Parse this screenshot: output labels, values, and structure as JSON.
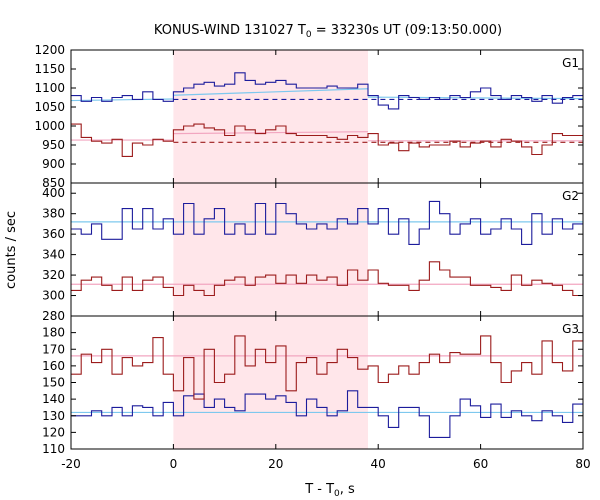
{
  "chart_data": {
    "type": "line",
    "title_main": "KONUS-WIND 131027 T",
    "title_sub": "0",
    "title_rest": " = 33230s UT (09:13:50.000)",
    "xlabel_main": "T - T",
    "xlabel_sub": "0",
    "xlabel_rest": ", s",
    "ylabel": "counts / sec",
    "xlim": [
      -20,
      80
    ],
    "x_ticks": [
      "-20",
      "0",
      "20",
      "40",
      "60",
      "80"
    ],
    "x_tick_values": [
      -20,
      0,
      20,
      40,
      60,
      80
    ],
    "highlight_interval": [
      0,
      38
    ],
    "colors": {
      "blue": "#1c1c9c",
      "red": "#9c1c1c",
      "light_blue": "#7ec8ee",
      "pink": "#f2a6c0",
      "highlight": "#ffe6ea"
    },
    "bin_edges": [
      -20,
      -18,
      -16,
      -14,
      -12,
      -10,
      -8,
      -6,
      -4,
      -2,
      0,
      2,
      4,
      6,
      8,
      10,
      12,
      14,
      16,
      18,
      20,
      22,
      24,
      26,
      28,
      30,
      32,
      34,
      36,
      38,
      40,
      42,
      44,
      46,
      48,
      50,
      52,
      54,
      56,
      58,
      60,
      62,
      64,
      66,
      68,
      70,
      72,
      74,
      76,
      78,
      80
    ],
    "panels": [
      {
        "label": "G1",
        "ylim": [
          850,
          1200
        ],
        "y_ticks": [
          "850",
          "900",
          "950",
          "1000",
          "1050",
          "1100",
          "1150",
          "1200"
        ],
        "y_tick_values": [
          850,
          900,
          950,
          1000,
          1050,
          1100,
          1150,
          1200
        ],
        "series": [
          {
            "color": "blue",
            "values": [
              1080,
              1065,
              1075,
              1065,
              1075,
              1080,
              1070,
              1090,
              1070,
              1065,
              1090,
              1100,
              1110,
              1115,
              1105,
              1110,
              1140,
              1120,
              1110,
              1115,
              1120,
              1110,
              1100,
              1100,
              1100,
              1105,
              1100,
              1100,
              1110,
              1080,
              1055,
              1045,
              1080,
              1075,
              1070,
              1075,
              1070,
              1080,
              1075,
              1090,
              1100,
              1080,
              1070,
              1080,
              1075,
              1065,
              1080,
              1060,
              1075,
              1080
            ]
          },
          {
            "color": "red",
            "values": [
              1005,
              970,
              960,
              955,
              965,
              920,
              955,
              950,
              965,
              960,
              990,
              1000,
              1005,
              995,
              990,
              975,
              1000,
              990,
              980,
              990,
              1000,
              980,
              975,
              975,
              975,
              970,
              965,
              975,
              970,
              980,
              950,
              955,
              935,
              955,
              945,
              950,
              950,
              960,
              945,
              955,
              960,
              945,
              965,
              960,
              945,
              925,
              950,
              980,
              975,
              975
            ]
          }
        ],
        "fits": [
          {
            "color": "light_blue",
            "segments": [
              [
                -20,
                1067
              ],
              [
                0,
                1071
              ],
              [
                0,
                1081
              ],
              [
                38,
                1098
              ],
              [
                38,
                1076
              ],
              [
                80,
                1072
              ]
            ]
          },
          {
            "color": "pink",
            "segments": [
              [
                -20,
                963
              ],
              [
                0,
                963
              ],
              [
                0,
                980
              ],
              [
                38,
                985
              ],
              [
                38,
                961
              ],
              [
                80,
                961
              ]
            ]
          }
        ],
        "baselines": [
          {
            "color": "blue",
            "from": 0,
            "to": 80,
            "value": 1070
          },
          {
            "color": "red",
            "from": 0,
            "to": 80,
            "value": 957
          }
        ]
      },
      {
        "label": "G2",
        "ylim": [
          280,
          410
        ],
        "y_ticks": [
          "280",
          "300",
          "320",
          "340",
          "360",
          "380",
          "400"
        ],
        "y_tick_values": [
          280,
          300,
          320,
          340,
          360,
          380,
          400
        ],
        "series": [
          {
            "color": "blue",
            "values": [
              365,
              360,
              370,
              355,
              355,
              385,
              365,
              385,
              365,
              375,
              360,
              390,
              360,
              375,
              385,
              360,
              370,
              360,
              390,
              360,
              390,
              380,
              370,
              365,
              370,
              365,
              375,
              370,
              385,
              370,
              385,
              360,
              375,
              350,
              365,
              392,
              380,
              360,
              370,
              375,
              360,
              365,
              375,
              365,
              350,
              380,
              360,
              375,
              365,
              370
            ]
          },
          {
            "color": "red",
            "values": [
              305,
              315,
              318,
              310,
              305,
              318,
              305,
              315,
              318,
              308,
              300,
              310,
              305,
              300,
              310,
              315,
              318,
              310,
              318,
              320,
              312,
              320,
              312,
              320,
              315,
              318,
              310,
              325,
              315,
              325,
              312,
              310,
              310,
              305,
              315,
              333,
              325,
              318,
              318,
              310,
              310,
              308,
              305,
              320,
              310,
              315,
              312,
              310,
              305,
              300
            ]
          }
        ],
        "fits": [
          {
            "color": "light_blue",
            "segments": [
              [
                -20,
                372
              ],
              [
                80,
                372
              ]
            ]
          },
          {
            "color": "pink",
            "segments": [
              [
                -20,
                311
              ],
              [
                80,
                311
              ]
            ]
          }
        ],
        "baselines": []
      },
      {
        "label": "G3",
        "ylim": [
          110,
          190
        ],
        "y_ticks": [
          "110",
          "120",
          "130",
          "140",
          "150",
          "160",
          "170",
          "180"
        ],
        "y_tick_values": [
          110,
          120,
          130,
          140,
          150,
          160,
          170,
          180
        ],
        "series": [
          {
            "color": "blue",
            "values": [
              130,
              130,
              133,
              130,
              135,
              130,
              136,
              135,
              130,
              138,
              130,
              142,
              143,
              135,
              140,
              135,
              133,
              143,
              143,
              140,
              142,
              138,
              130,
              140,
              135,
              130,
              133,
              145,
              135,
              135,
              130,
              123,
              135,
              135,
              130,
              117,
              117,
              130,
              140,
              136,
              129,
              137,
              129,
              133,
              130,
              127,
              133,
              130,
              126,
              137
            ]
          },
          {
            "color": "red",
            "values": [
              155,
              167,
              162,
              170,
              155,
              165,
              160,
              162,
              177,
              155,
              145,
              165,
              140,
              170,
              150,
              155,
              178,
              160,
              170,
              162,
              172,
              145,
              162,
              165,
              155,
              162,
              170,
              165,
              158,
              160,
              150,
              155,
              160,
              155,
              162,
              167,
              162,
              168,
              167,
              167,
              178,
              162,
              150,
              157,
              162,
              155,
              175,
              162,
              157,
              175
            ]
          }
        ],
        "fits": [
          {
            "color": "light_blue",
            "segments": [
              [
                -20,
                132
              ],
              [
                80,
                132
              ]
            ]
          },
          {
            "color": "pink",
            "segments": [
              [
                -20,
                166
              ],
              [
                80,
                166
              ]
            ]
          }
        ],
        "baselines": []
      }
    ]
  }
}
